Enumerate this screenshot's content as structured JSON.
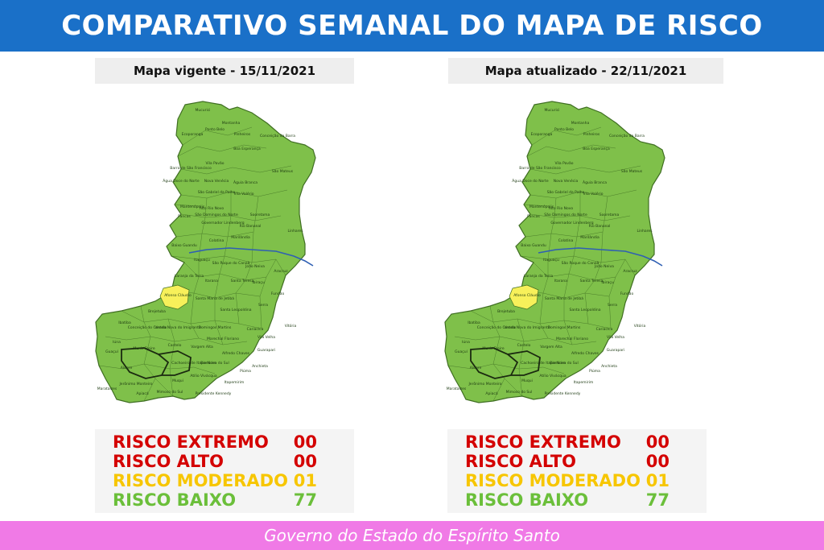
{
  "header": {
    "title": "COMPARATIVO SEMANAL DO MAPA DE RISCO"
  },
  "panels": [
    {
      "title": "Mapa vigente - 15/11/2021",
      "legend": [
        {
          "label": "RISCO EXTREMO",
          "value": "00",
          "color": "#d40000"
        },
        {
          "label": "RISCO ALTO",
          "value": "00",
          "color": "#d40000"
        },
        {
          "label": "RISCO MODERADO",
          "value": "01",
          "color": "#f7c600"
        },
        {
          "label": "RISCO BAIXO",
          "value": "77",
          "color": "#6bbf3a"
        }
      ]
    },
    {
      "title": "Mapa atualizado - 22/11/2021",
      "legend": [
        {
          "label": "RISCO EXTREMO",
          "value": "00",
          "color": "#d40000"
        },
        {
          "label": "RISCO ALTO",
          "value": "00",
          "color": "#d40000"
        },
        {
          "label": "RISCO MODERADO",
          "value": "01",
          "color": "#f7c600"
        },
        {
          "label": "RISCO BAIXO",
          "value": "77",
          "color": "#6bbf3a"
        }
      ]
    }
  ],
  "map": {
    "colors": {
      "low": "#7fc04a",
      "moderate": "#f7f05a",
      "border": "#3f6e22",
      "river": "#2f5fb3"
    },
    "moderate_municipality": "Afonso Cláudio",
    "labels": [
      "Mucurici",
      "Montanha",
      "Ecoporanga",
      "Ponto Belo",
      "Pinheiros",
      "Conceição da Barra",
      "Boa Esperança",
      "Barra de São Francisco",
      "Vila Pavão",
      "São Mateus",
      "Água Doce do Norte",
      "Nova Venécia",
      "Águia Branca",
      "São Gabriel da Palha",
      "Vila Valério",
      "Mantenópolis",
      "Alto Rio Novo",
      "Pancas",
      "São Domingos do Norte",
      "Sooretama",
      "Linhares",
      "Governador Lindenberg",
      "Rio Bananal",
      "Colatina",
      "Marilândia",
      "Baixo Guandu",
      "Itaguaçu",
      "São Roque do Canaã",
      "João Neiva",
      "Aracruz",
      "Laranja da Terra",
      "Itarana",
      "Santa Teresa",
      "Ibiraçu",
      "Fundão",
      "Afonso Cláudio",
      "Santa Maria de Jetibá",
      "Serra",
      "Brejetuba",
      "Santa Leopoldina",
      "Vitória",
      "Domingos Martins",
      "Cariacica",
      "Conceição do Castelo",
      "Venda Nova do Imigrante",
      "Vila Velha",
      "Marechal Floriano",
      "Ibatiba",
      "Iúna",
      "Muniz Freire",
      "Castelo",
      "Vargem Alta",
      "Alfredo Chaves",
      "Guarapari",
      "Anchieta",
      "Cachoeiro de Itapemirim",
      "Rio Novo do Sul",
      "Piúma",
      "Itapemirim",
      "Marataízes",
      "Muqui",
      "Atílio Vivácqua",
      "Presidente Kennedy",
      "Mimoso do Sul",
      "Apiacá",
      "Guaçuí",
      "Alegre",
      "Jerônimo Monteiro"
    ]
  },
  "footer": {
    "text": "Governo do Estado do Espírito Santo"
  }
}
